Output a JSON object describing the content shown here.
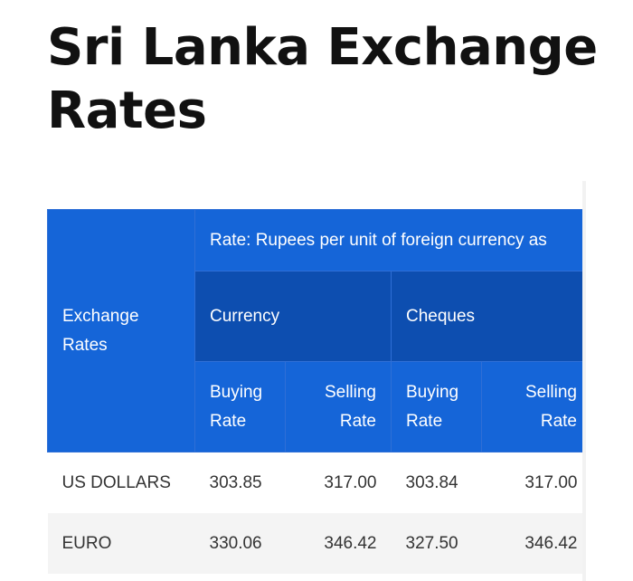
{
  "page": {
    "title": "Sri Lanka Exchange Rates"
  },
  "table": {
    "corner_header": "Exchange Rates",
    "span_header": "Rate: Rupees per unit of foreign currency as",
    "groups": [
      "Currency",
      "Cheques"
    ],
    "sub_headers": [
      "Buying Rate",
      "Selling Rate",
      "Buying Rate",
      "Selling Rate"
    ],
    "rows": [
      {
        "name": "US DOLLARS",
        "values": [
          "303.85",
          "317.00",
          "303.84",
          "317.00"
        ]
      },
      {
        "name": "EURO",
        "values": [
          "330.06",
          "346.42",
          "327.50",
          "346.42"
        ]
      }
    ]
  },
  "colors": {
    "header_blue": "#1565d8",
    "group_blue": "#0d4eb0",
    "header_text": "#ffffff",
    "row_alt": "#f4f4f4"
  }
}
